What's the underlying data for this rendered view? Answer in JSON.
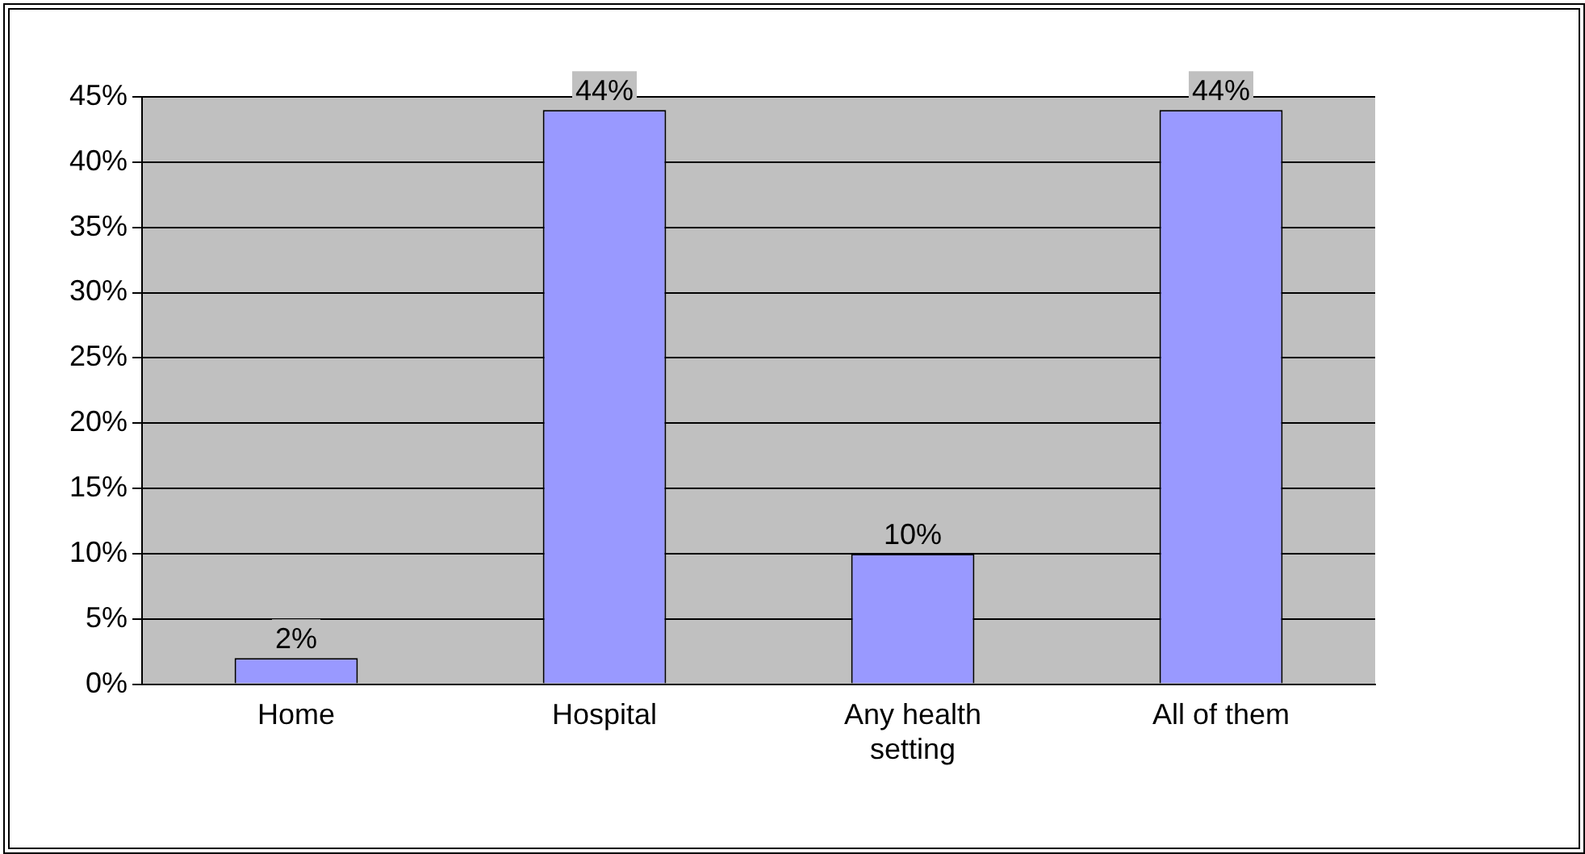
{
  "chart_data": {
    "type": "bar",
    "categories": [
      "Home",
      "Hospital",
      "Any health setting",
      "All of them"
    ],
    "values": [
      2,
      44,
      10,
      44
    ],
    "value_labels": [
      "2%",
      "44%",
      "10%",
      "44%"
    ],
    "color": "#9999ff",
    "ylim": [
      0,
      45
    ],
    "yticks": [
      {
        "value": 0,
        "label": "0%"
      },
      {
        "value": 5,
        "label": "5%"
      },
      {
        "value": 10,
        "label": "10%"
      },
      {
        "value": 15,
        "label": "15%"
      },
      {
        "value": 20,
        "label": "20%"
      },
      {
        "value": 25,
        "label": "25%"
      },
      {
        "value": 30,
        "label": "30%"
      },
      {
        "value": 35,
        "label": "35%"
      },
      {
        "value": 40,
        "label": "40%"
      },
      {
        "value": 45,
        "label": "45%"
      }
    ],
    "grid": "y",
    "legend": false
  }
}
